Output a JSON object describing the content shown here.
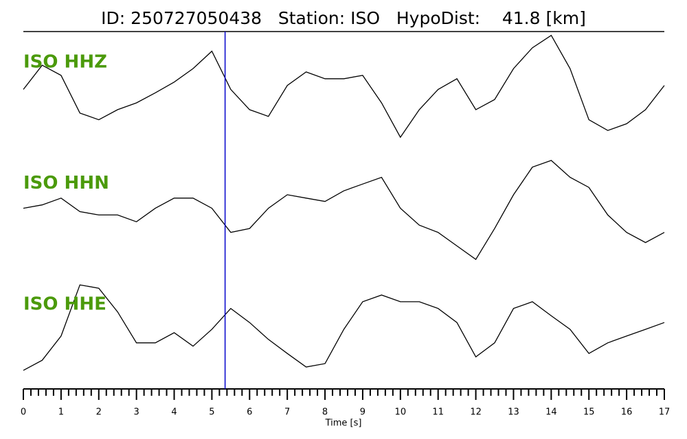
{
  "chart_data": {
    "type": "line",
    "title": "ID: 250727050438   Station: ISO   HypoDist:    41.8 [km]",
    "xlabel": "Time [s]",
    "xlim": [
      0,
      17
    ],
    "xticks": [
      0,
      1,
      2,
      3,
      4,
      5,
      6,
      7,
      8,
      9,
      10,
      11,
      12,
      13,
      14,
      15,
      16,
      17
    ],
    "xminor": 5,
    "ylim": [
      -1,
      1
    ],
    "label_color": "#4b9a0b",
    "pick_time": 5.35,
    "pick_color": "#0000cc",
    "x": [
      0,
      0.5,
      1,
      1.5,
      2,
      2.5,
      3,
      3.5,
      4,
      4.5,
      5,
      5.5,
      6,
      6.5,
      7,
      7.5,
      8,
      8.5,
      9,
      9.5,
      10,
      10.5,
      11,
      11.5,
      12,
      12.5,
      13,
      13.5,
      14,
      14.5,
      15,
      15.5,
      16,
      16.5,
      17
    ],
    "series": [
      {
        "name": "ISO HHZ",
        "color": "#000000",
        "values": [
          0.02,
          0.45,
          0.27,
          -0.4,
          -0.52,
          -0.34,
          -0.22,
          -0.04,
          0.15,
          0.39,
          0.7,
          0.02,
          -0.34,
          -0.46,
          0.09,
          0.33,
          0.21,
          0.21,
          0.27,
          -0.22,
          -0.83,
          -0.34,
          0.02,
          0.21,
          -0.34,
          -0.16,
          0.39,
          0.76,
          0.98,
          0.39,
          -0.52,
          -0.71,
          -0.59,
          -0.34,
          0.09
        ]
      },
      {
        "name": "ISO HHN",
        "color": "#000000",
        "values": [
          0.06,
          0.12,
          0.24,
          0,
          -0.06,
          -0.06,
          -0.18,
          0.06,
          0.24,
          0.24,
          0.06,
          -0.37,
          -0.3,
          0.06,
          0.3,
          0.24,
          0.18,
          0.37,
          0.49,
          0.61,
          0.06,
          -0.24,
          -0.37,
          -0.61,
          -0.85,
          -0.3,
          0.3,
          0.79,
          0.91,
          0.61,
          0.43,
          -0.06,
          -0.37,
          -0.55,
          -0.37
        ]
      },
      {
        "name": "ISO HHE",
        "color": "#000000",
        "values": [
          -0.67,
          -0.49,
          -0.06,
          0.85,
          0.79,
          0.37,
          -0.18,
          -0.18,
          0,
          -0.24,
          0.06,
          0.43,
          0.18,
          -0.12,
          -0.37,
          -0.61,
          -0.55,
          0.06,
          0.55,
          0.67,
          0.55,
          0.55,
          0.43,
          0.18,
          -0.43,
          -0.18,
          0.43,
          0.55,
          0.3,
          0.06,
          -0.37,
          -0.18,
          -0.06,
          0.06,
          0.18
        ]
      }
    ]
  }
}
